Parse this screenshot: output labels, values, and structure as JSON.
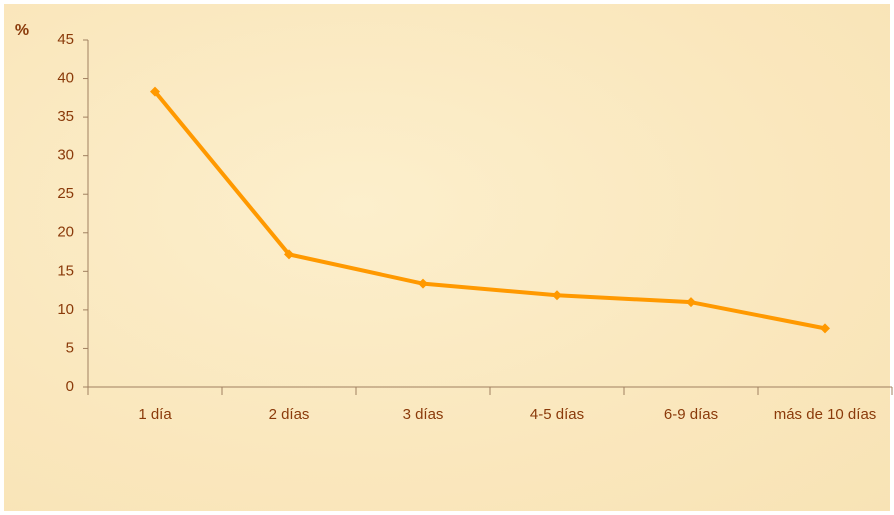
{
  "chart_data": {
    "type": "line",
    "y_label": "%",
    "categories": [
      "1 día",
      "2 días",
      "3 días",
      "4-5 días",
      "6-9 días",
      "más de 10 días"
    ],
    "values": [
      38.3,
      17.2,
      13.4,
      11.9,
      11.0,
      7.6
    ],
    "color": "#ff9900",
    "ylim": [
      0,
      45
    ],
    "yticks": [
      0,
      5,
      10,
      15,
      20,
      25,
      30,
      35,
      40,
      45
    ],
    "grid": false
  }
}
